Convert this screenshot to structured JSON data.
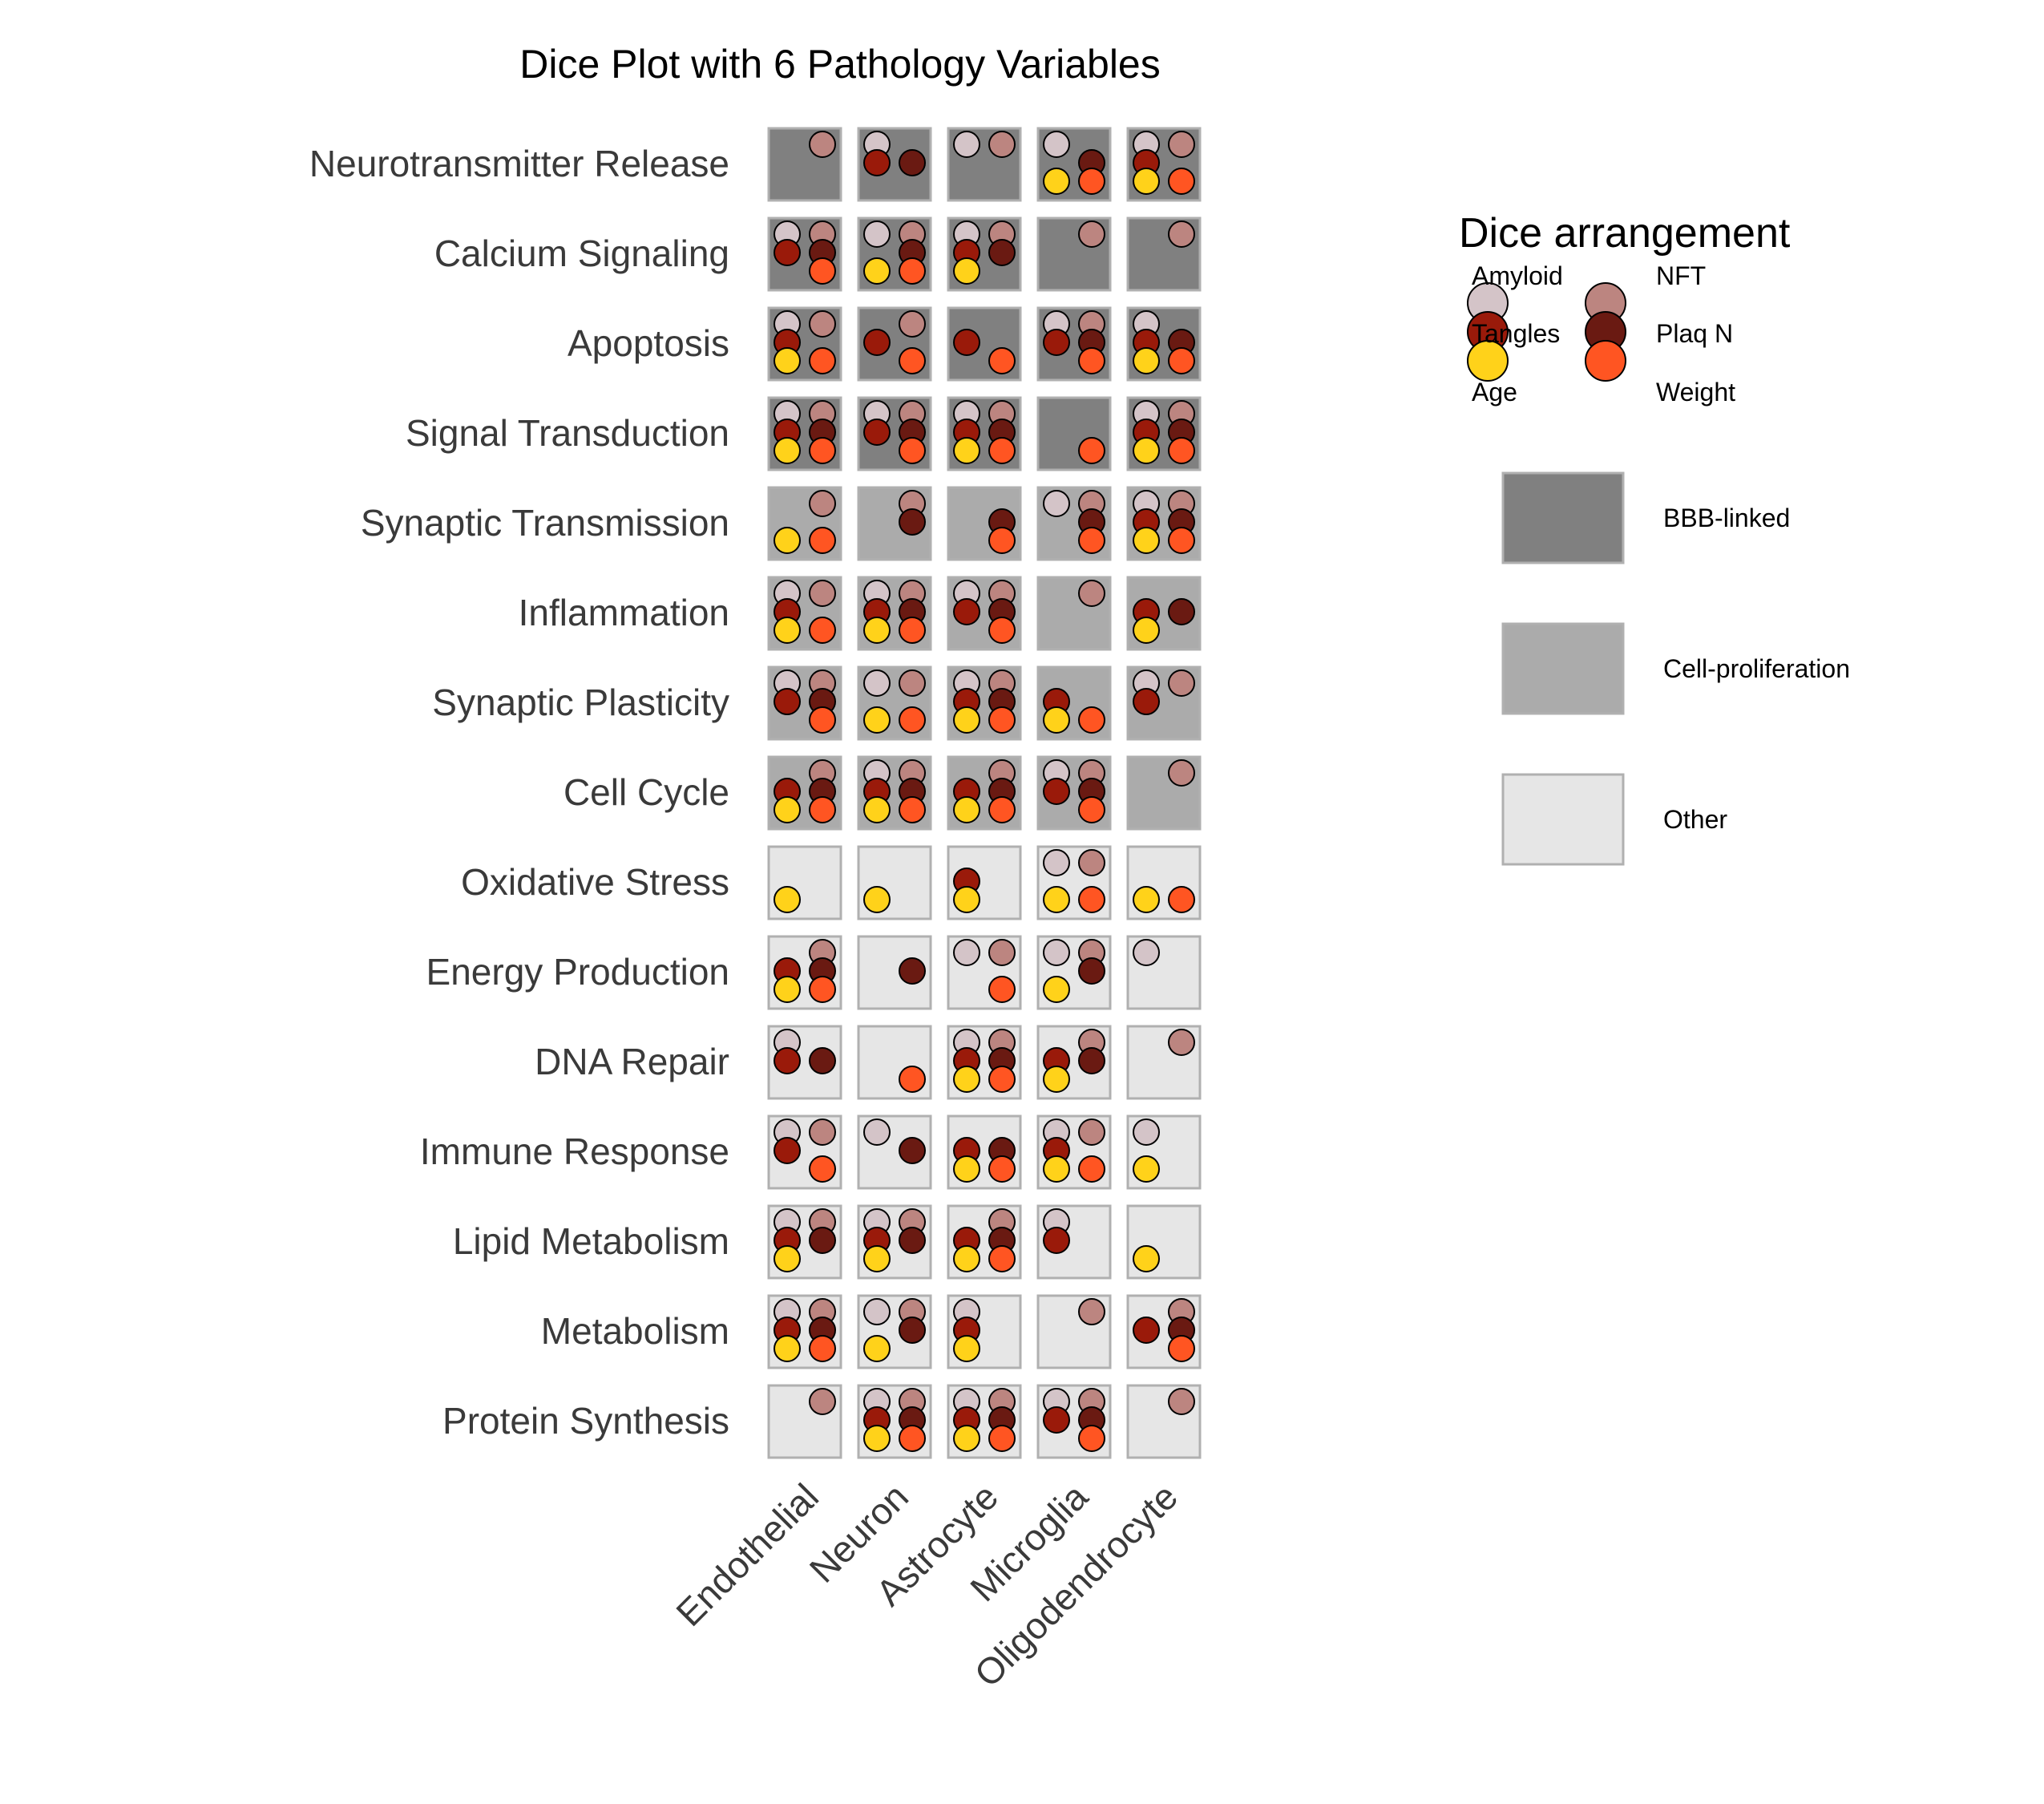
{
  "chart_data": {
    "type": "dice",
    "title": "Dice Plot with 6 Pathology Variables",
    "rows": [
      "Neurotransmitter Release",
      "Calcium Signaling",
      "Apoptosis",
      "Signal Transduction",
      "Synaptic Transmission",
      "Inflammation",
      "Synaptic Plasticity",
      "Cell Cycle",
      "Oxidative Stress",
      "Energy Production",
      "DNA Repair",
      "Immune Response",
      "Lipid Metabolism",
      "Metabolism",
      "Protein Synthesis"
    ],
    "columns": [
      "Endothelial",
      "Neuron",
      "Astrocyte",
      "Microglia",
      "Oligodendrocyte"
    ],
    "variables": [
      {
        "name": "Amyloid",
        "color": "#D4C4C8"
      },
      {
        "name": "NFT",
        "color": "#BC8580"
      },
      {
        "name": "Tangles",
        "color": "#9A1A0A"
      },
      {
        "name": "Plaq N",
        "color": "#6A1A12"
      },
      {
        "name": "Age",
        "color": "#FFD21A"
      },
      {
        "name": "Weight",
        "color": "#FF5522"
      }
    ],
    "categories": [
      {
        "name": "BBB-linked",
        "color": "#808080"
      },
      {
        "name": "Cell-proliferation",
        "color": "#ABABAB"
      },
      {
        "name": "Other",
        "color": "#E6E6E6"
      }
    ],
    "row_category": [
      "BBB-linked",
      "BBB-linked",
      "BBB-linked",
      "BBB-linked",
      "Cell-proliferation",
      "Cell-proliferation",
      "Cell-proliferation",
      "Cell-proliferation",
      "Other",
      "Other",
      "Other",
      "Other",
      "Other",
      "Other",
      "Other"
    ],
    "cells": [
      [
        [
          "NFT"
        ],
        [
          "Amyloid",
          "Tangles",
          "Plaq N"
        ],
        [
          "Amyloid",
          "NFT"
        ],
        [
          "Amyloid",
          "Plaq N",
          "Age",
          "Weight"
        ],
        [
          "Amyloid",
          "NFT",
          "Tangles",
          "Age",
          "Weight"
        ]
      ],
      [
        [
          "Amyloid",
          "NFT",
          "Tangles",
          "Plaq N",
          "Weight"
        ],
        [
          "Amyloid",
          "NFT",
          "Plaq N",
          "Age",
          "Weight"
        ],
        [
          "Amyloid",
          "NFT",
          "Tangles",
          "Plaq N",
          "Age"
        ],
        [
          "NFT"
        ],
        [
          "NFT"
        ]
      ],
      [
        [
          "Amyloid",
          "NFT",
          "Tangles",
          "Age",
          "Weight"
        ],
        [
          "NFT",
          "Tangles",
          "Weight"
        ],
        [
          "Tangles",
          "Weight"
        ],
        [
          "Amyloid",
          "NFT",
          "Tangles",
          "Plaq N",
          "Weight"
        ],
        [
          "Amyloid",
          "Tangles",
          "Plaq N",
          "Age",
          "Weight"
        ]
      ],
      [
        [
          "Amyloid",
          "NFT",
          "Tangles",
          "Plaq N",
          "Age",
          "Weight"
        ],
        [
          "Amyloid",
          "NFT",
          "Tangles",
          "Plaq N",
          "Weight"
        ],
        [
          "Amyloid",
          "NFT",
          "Tangles",
          "Plaq N",
          "Age",
          "Weight"
        ],
        [
          "Weight"
        ],
        [
          "Amyloid",
          "NFT",
          "Tangles",
          "Plaq N",
          "Age",
          "Weight"
        ]
      ],
      [
        [
          "NFT",
          "Age",
          "Weight"
        ],
        [
          "NFT",
          "Plaq N"
        ],
        [
          "Plaq N",
          "Weight"
        ],
        [
          "Amyloid",
          "NFT",
          "Plaq N",
          "Weight"
        ],
        [
          "Amyloid",
          "NFT",
          "Tangles",
          "Plaq N",
          "Age",
          "Weight"
        ]
      ],
      [
        [
          "Amyloid",
          "NFT",
          "Tangles",
          "Age",
          "Weight"
        ],
        [
          "Amyloid",
          "NFT",
          "Tangles",
          "Plaq N",
          "Age",
          "Weight"
        ],
        [
          "Amyloid",
          "NFT",
          "Tangles",
          "Plaq N",
          "Weight"
        ],
        [
          "NFT"
        ],
        [
          "Tangles",
          "Plaq N",
          "Age"
        ]
      ],
      [
        [
          "Amyloid",
          "NFT",
          "Tangles",
          "Plaq N",
          "Weight"
        ],
        [
          "Amyloid",
          "NFT",
          "Age",
          "Weight"
        ],
        [
          "Amyloid",
          "NFT",
          "Tangles",
          "Plaq N",
          "Age",
          "Weight"
        ],
        [
          "Tangles",
          "Age",
          "Weight"
        ],
        [
          "Amyloid",
          "NFT",
          "Tangles"
        ]
      ],
      [
        [
          "NFT",
          "Tangles",
          "Plaq N",
          "Age",
          "Weight"
        ],
        [
          "Amyloid",
          "NFT",
          "Tangles",
          "Plaq N",
          "Age",
          "Weight"
        ],
        [
          "NFT",
          "Tangles",
          "Plaq N",
          "Age",
          "Weight"
        ],
        [
          "Amyloid",
          "NFT",
          "Tangles",
          "Plaq N",
          "Weight"
        ],
        [
          "NFT"
        ]
      ],
      [
        [
          "Age"
        ],
        [
          "Age"
        ],
        [
          "Tangles",
          "Age"
        ],
        [
          "Amyloid",
          "NFT",
          "Age",
          "Weight"
        ],
        [
          "Age",
          "Weight"
        ]
      ],
      [
        [
          "NFT",
          "Tangles",
          "Plaq N",
          "Age",
          "Weight"
        ],
        [
          "Plaq N"
        ],
        [
          "Amyloid",
          "NFT",
          "Weight"
        ],
        [
          "Amyloid",
          "NFT",
          "Plaq N",
          "Age"
        ],
        [
          "Amyloid"
        ]
      ],
      [
        [
          "Amyloid",
          "Tangles",
          "Plaq N"
        ],
        [
          "Weight"
        ],
        [
          "Amyloid",
          "NFT",
          "Tangles",
          "Plaq N",
          "Age",
          "Weight"
        ],
        [
          "NFT",
          "Tangles",
          "Plaq N",
          "Age"
        ],
        [
          "NFT"
        ]
      ],
      [
        [
          "Amyloid",
          "NFT",
          "Tangles",
          "Weight"
        ],
        [
          "Amyloid",
          "Plaq N"
        ],
        [
          "Tangles",
          "Plaq N",
          "Age",
          "Weight"
        ],
        [
          "Amyloid",
          "NFT",
          "Tangles",
          "Age",
          "Weight"
        ],
        [
          "Amyloid",
          "Age"
        ]
      ],
      [
        [
          "Amyloid",
          "NFT",
          "Tangles",
          "Plaq N",
          "Age"
        ],
        [
          "Amyloid",
          "NFT",
          "Tangles",
          "Plaq N",
          "Age"
        ],
        [
          "NFT",
          "Tangles",
          "Plaq N",
          "Age",
          "Weight"
        ],
        [
          "Amyloid",
          "Tangles"
        ],
        [
          "Age"
        ]
      ],
      [
        [
          "Amyloid",
          "NFT",
          "Tangles",
          "Plaq N",
          "Age",
          "Weight"
        ],
        [
          "Amyloid",
          "NFT",
          "Plaq N",
          "Age"
        ],
        [
          "Amyloid",
          "Tangles",
          "Age"
        ],
        [
          "NFT"
        ],
        [
          "NFT",
          "Tangles",
          "Plaq N",
          "Weight"
        ]
      ],
      [
        [
          "NFT"
        ],
        [
          "Amyloid",
          "NFT",
          "Tangles",
          "Plaq N",
          "Age",
          "Weight"
        ],
        [
          "Amyloid",
          "NFT",
          "Tangles",
          "Plaq N",
          "Age",
          "Weight"
        ],
        [
          "Amyloid",
          "NFT",
          "Tangles",
          "Plaq N",
          "Weight"
        ],
        [
          "NFT"
        ]
      ]
    ],
    "legend": {
      "title": "Dice arrangement",
      "dice_labels": [
        "Amyloid",
        "NFT",
        "Tangles",
        "Plaq N",
        "Age",
        "Weight"
      ],
      "category_labels": [
        "BBB-linked",
        "Cell-proliferation",
        "Other"
      ],
      "placement": "right"
    }
  }
}
